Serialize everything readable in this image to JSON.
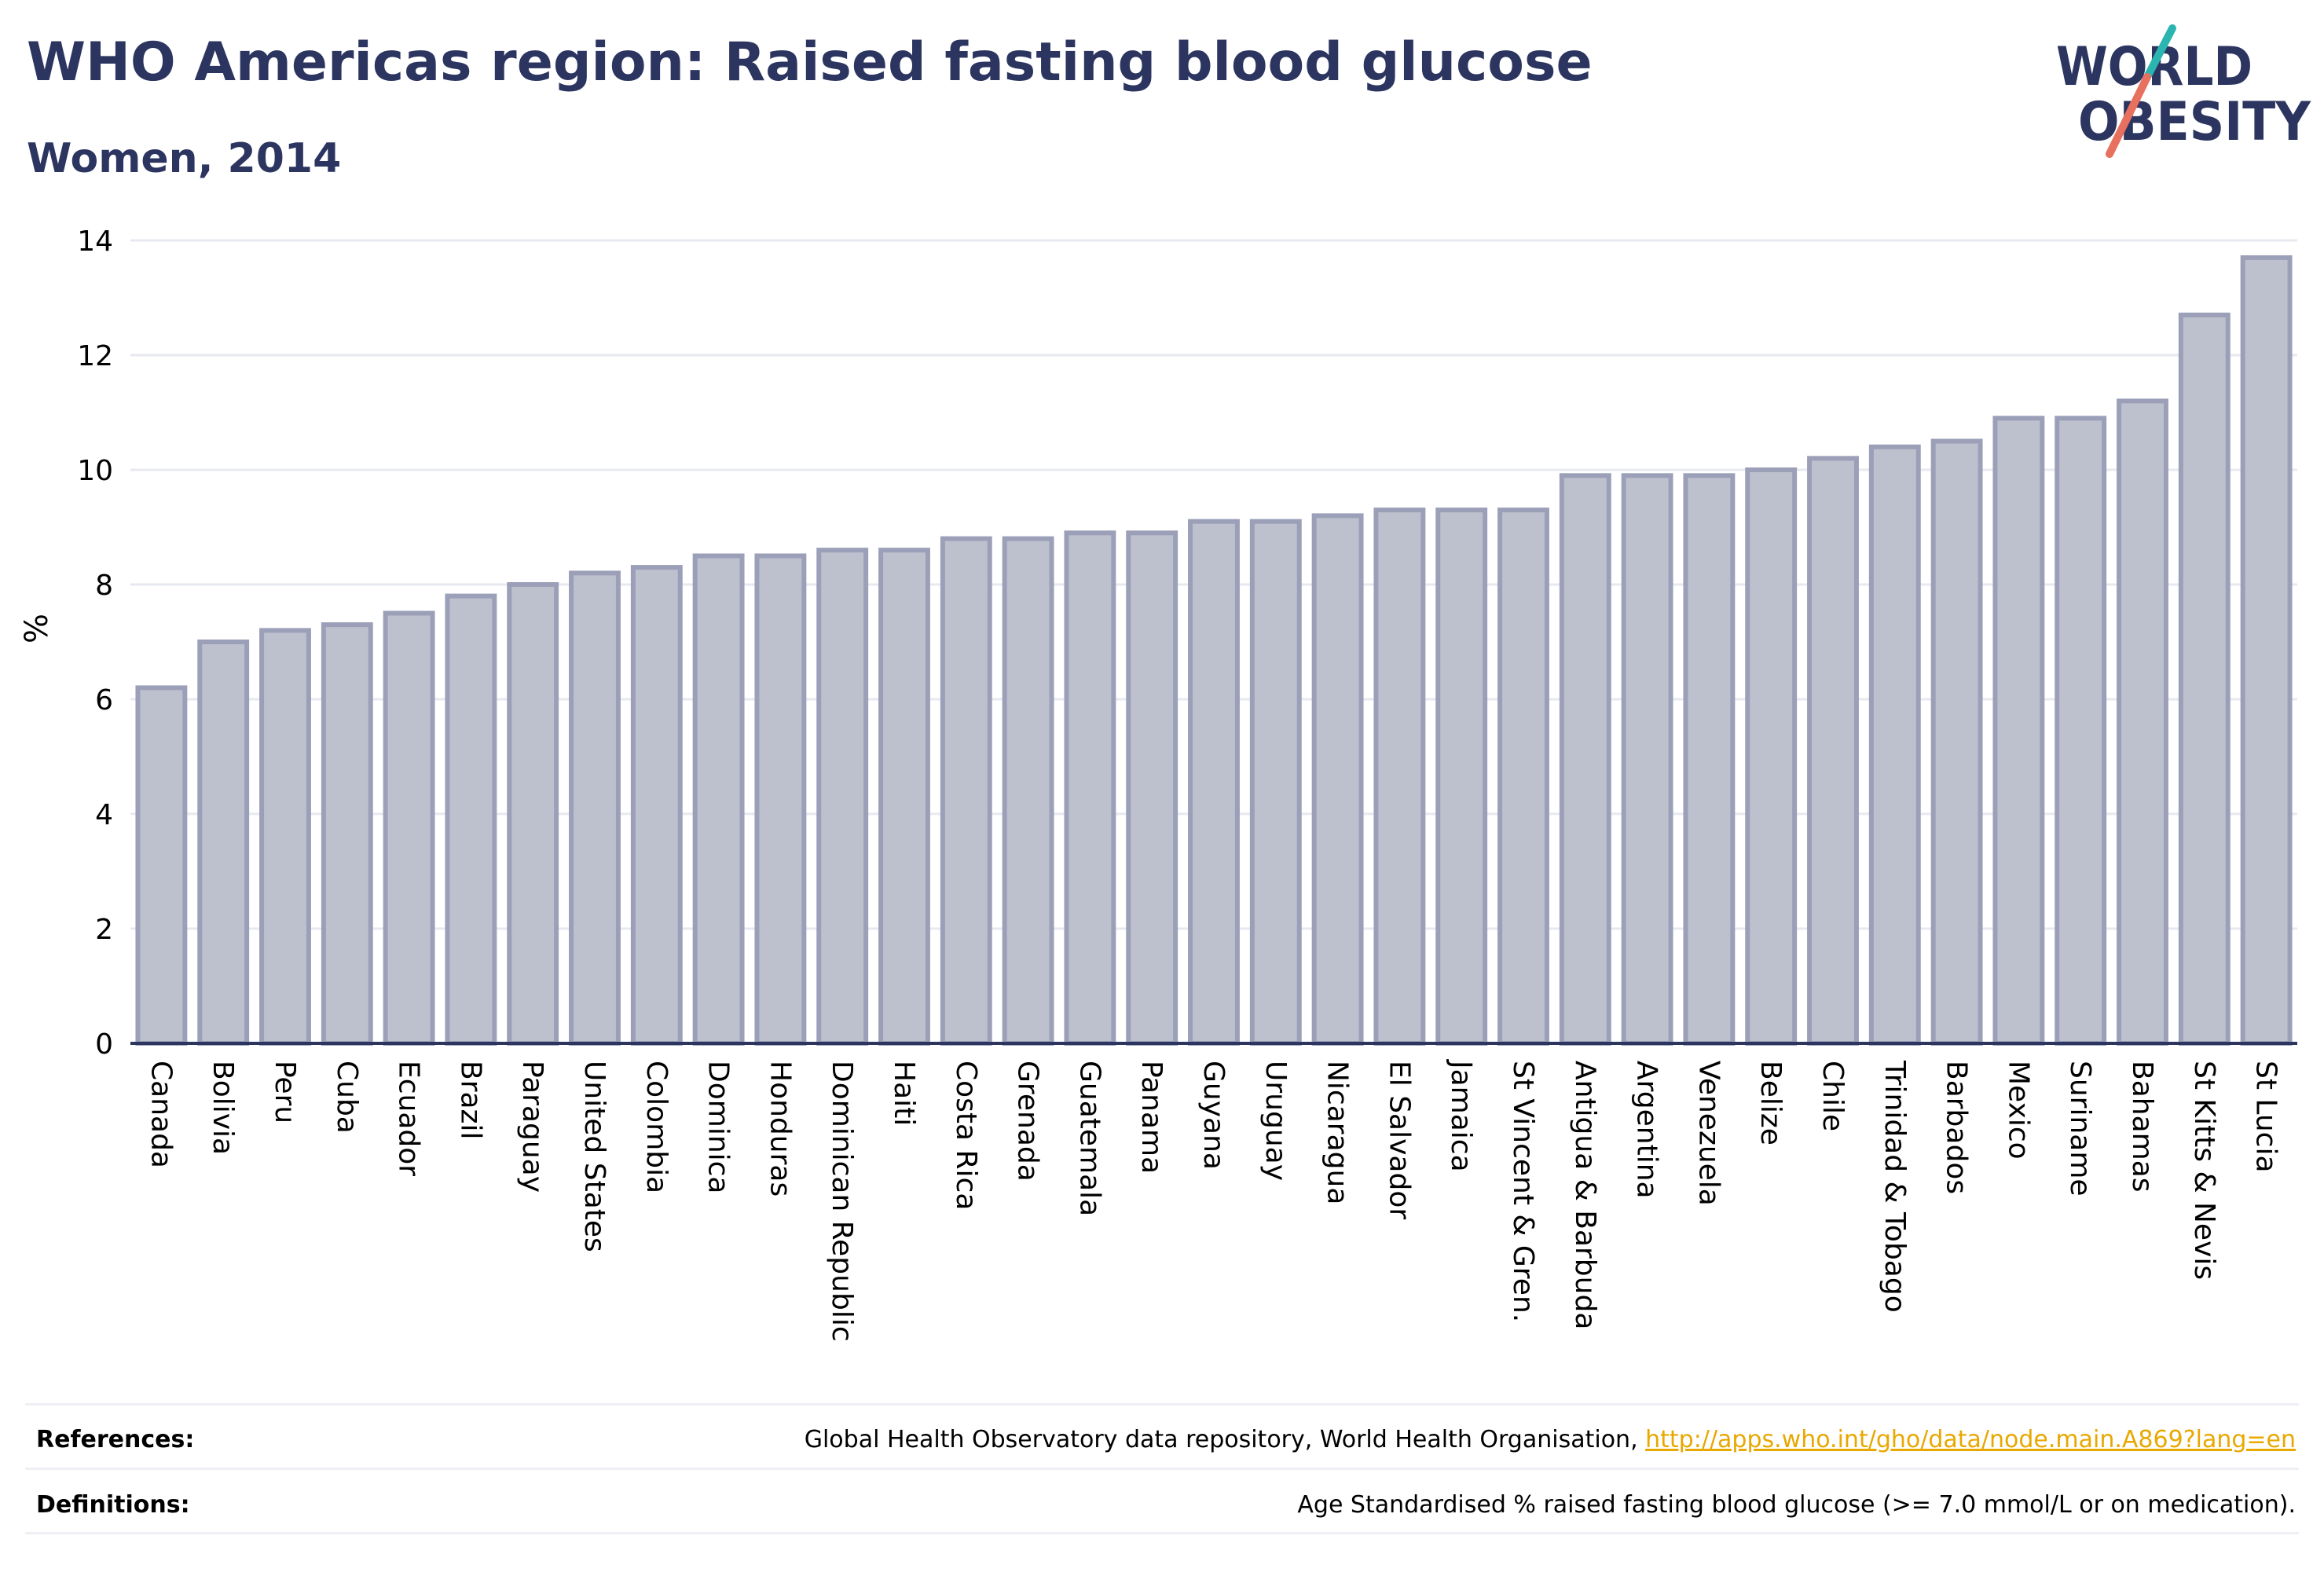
{
  "header": {
    "title": "WHO Americas region: Raised fasting blood glucose",
    "subtitle": "Women, 2014"
  },
  "logo": {
    "line1": "WORLD",
    "line2": "OBESITY",
    "text_color": "#2c3560",
    "slash_colors": [
      "#2bb5b0",
      "#e8705f"
    ]
  },
  "colors": {
    "bar_fill": "#bdc0cd",
    "bar_stroke": "#9ba0b8",
    "grid": "#e7e9f0",
    "axis": "#2c3560",
    "title": "#2c3560",
    "link": "#e8a800"
  },
  "chart_data": {
    "type": "bar",
    "title": "WHO Americas region: Raised fasting blood glucose",
    "subtitle": "Women, 2014",
    "xlabel": "",
    "ylabel": "%",
    "ylim": [
      0,
      14
    ],
    "yticks": [
      0,
      2,
      4,
      6,
      8,
      10,
      12,
      14
    ],
    "grid": true,
    "categories": [
      "Canada",
      "Bolivia",
      "Peru",
      "Cuba",
      "Ecuador",
      "Brazil",
      "Paraguay",
      "United States",
      "Colombia",
      "Dominica",
      "Honduras",
      "Dominican Republic",
      "Haiti",
      "Costa Rica",
      "Grenada",
      "Guatemala",
      "Panama",
      "Guyana",
      "Uruguay",
      "Nicaragua",
      "El Salvador",
      "Jamaica",
      "St Vincent & Gren.",
      "Antigua & Barbuda",
      "Argentina",
      "Venezuela",
      "Belize",
      "Chile",
      "Trinidad & Tobago",
      "Barbados",
      "Mexico",
      "Suriname",
      "Bahamas",
      "St Kitts & Nevis",
      "St Lucia"
    ],
    "values": [
      6.2,
      7.0,
      7.2,
      7.3,
      7.5,
      7.8,
      8.0,
      8.2,
      8.3,
      8.5,
      8.5,
      8.6,
      8.6,
      8.8,
      8.8,
      8.9,
      8.9,
      9.1,
      9.1,
      9.2,
      9.3,
      9.3,
      9.3,
      9.9,
      9.9,
      9.9,
      10.0,
      10.2,
      10.4,
      10.5,
      10.9,
      10.9,
      11.2,
      12.7,
      13.7
    ]
  },
  "footer": {
    "references_label": "References:",
    "references_text": "Global Health Observatory data repository, World Health Organisation, ",
    "references_link": "http://apps.who.int/gho/data/node.main.A869?lang=en",
    "definitions_label": "Definitions:",
    "definitions_text": "Age Standardised % raised fasting blood glucose (>= 7.0 mmol/L or on medication)."
  }
}
